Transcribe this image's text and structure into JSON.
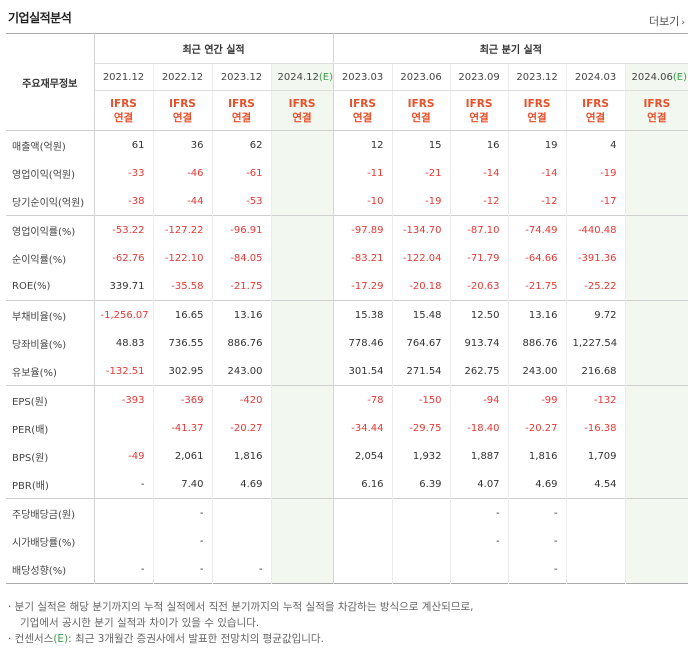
{
  "title": "기업실적분석",
  "more_label": "더보기",
  "header": {
    "corner": "주요재무정보",
    "annual_group": "최근 연간 실적",
    "quarter_group": "최근 분기 실적",
    "annual_periods": [
      "2021.12",
      "2022.12",
      "2023.12",
      "2024.12"
    ],
    "quarter_periods": [
      "2023.03",
      "2023.06",
      "2023.09",
      "2023.12",
      "2024.03",
      "2024.06"
    ],
    "est_mark": "(E)",
    "ifrs_line1": "IFRS",
    "ifrs_line2": "연결"
  },
  "rows": [
    {
      "label": "매출액(억원)",
      "values": [
        "61",
        "36",
        "62",
        "",
        "12",
        "15",
        "16",
        "19",
        "4",
        ""
      ],
      "neg": [
        0,
        0,
        0,
        0,
        0,
        0,
        0,
        0,
        0,
        0
      ]
    },
    {
      "label": "영업이익(억원)",
      "values": [
        "-33",
        "-46",
        "-61",
        "",
        "-11",
        "-21",
        "-14",
        "-14",
        "-19",
        ""
      ],
      "neg": [
        1,
        1,
        1,
        0,
        1,
        1,
        1,
        1,
        1,
        0
      ]
    },
    {
      "label": "당기순이익(억원)",
      "values": [
        "-38",
        "-44",
        "-53",
        "",
        "-10",
        "-19",
        "-12",
        "-12",
        "-17",
        ""
      ],
      "neg": [
        1,
        1,
        1,
        0,
        1,
        1,
        1,
        1,
        1,
        0
      ]
    },
    {
      "label": "영업이익률(%)",
      "values": [
        "-53.22",
        "-127.22",
        "-96.91",
        "",
        "-97.89",
        "-134.70",
        "-87.10",
        "-74.49",
        "-440.48",
        ""
      ],
      "neg": [
        1,
        1,
        1,
        0,
        1,
        1,
        1,
        1,
        1,
        0
      ]
    },
    {
      "label": "순이익률(%)",
      "values": [
        "-62.76",
        "-122.10",
        "-84.05",
        "",
        "-83.21",
        "-122.04",
        "-71.79",
        "-64.66",
        "-391.36",
        ""
      ],
      "neg": [
        1,
        1,
        1,
        0,
        1,
        1,
        1,
        1,
        1,
        0
      ]
    },
    {
      "label": "ROE(%)",
      "values": [
        "339.71",
        "-35.58",
        "-21.75",
        "",
        "-17.29",
        "-20.18",
        "-20.63",
        "-21.75",
        "-25.22",
        ""
      ],
      "neg": [
        0,
        1,
        1,
        0,
        1,
        1,
        1,
        1,
        1,
        0
      ]
    },
    {
      "label": "부채비율(%)",
      "values": [
        "-1,256.07",
        "16.65",
        "13.16",
        "",
        "15.38",
        "15.48",
        "12.50",
        "13.16",
        "9.72",
        ""
      ],
      "neg": [
        1,
        0,
        0,
        0,
        0,
        0,
        0,
        0,
        0,
        0
      ]
    },
    {
      "label": "당좌비율(%)",
      "values": [
        "48.83",
        "736.55",
        "886.76",
        "",
        "778.46",
        "764.67",
        "913.74",
        "886.76",
        "1,227.54",
        ""
      ],
      "neg": [
        0,
        0,
        0,
        0,
        0,
        0,
        0,
        0,
        0,
        0
      ]
    },
    {
      "label": "유보율(%)",
      "values": [
        "-132.51",
        "302.95",
        "243.00",
        "",
        "301.54",
        "271.54",
        "262.75",
        "243.00",
        "216.68",
        ""
      ],
      "neg": [
        1,
        0,
        0,
        0,
        0,
        0,
        0,
        0,
        0,
        0
      ]
    },
    {
      "label": "EPS(원)",
      "values": [
        "-393",
        "-369",
        "-420",
        "",
        "-78",
        "-150",
        "-94",
        "-99",
        "-132",
        ""
      ],
      "neg": [
        1,
        1,
        1,
        0,
        1,
        1,
        1,
        1,
        1,
        0
      ]
    },
    {
      "label": "PER(배)",
      "values": [
        "",
        "-41.37",
        "-20.27",
        "",
        "-34.44",
        "-29.75",
        "-18.40",
        "-20.27",
        "-16.38",
        ""
      ],
      "neg": [
        0,
        1,
        1,
        0,
        1,
        1,
        1,
        1,
        1,
        0
      ]
    },
    {
      "label": "BPS(원)",
      "values": [
        "-49",
        "2,061",
        "1,816",
        "",
        "2,054",
        "1,932",
        "1,887",
        "1,816",
        "1,709",
        ""
      ],
      "neg": [
        1,
        0,
        0,
        0,
        0,
        0,
        0,
        0,
        0,
        0
      ]
    },
    {
      "label": "PBR(배)",
      "values": [
        "-",
        "7.40",
        "4.69",
        "",
        "6.16",
        "6.39",
        "4.07",
        "4.69",
        "4.54",
        ""
      ],
      "neg": [
        0,
        0,
        0,
        0,
        0,
        0,
        0,
        0,
        0,
        0
      ]
    },
    {
      "label": "주당배당금(원)",
      "values": [
        "",
        "-",
        "",
        "",
        "",
        "",
        "-",
        "-",
        "",
        ""
      ],
      "neg": [
        0,
        0,
        0,
        0,
        0,
        0,
        0,
        0,
        0,
        0
      ]
    },
    {
      "label": "시가배당률(%)",
      "values": [
        "",
        "-",
        "",
        "",
        "",
        "",
        "-",
        "-",
        "",
        ""
      ],
      "neg": [
        0,
        0,
        0,
        0,
        0,
        0,
        0,
        0,
        0,
        0
      ]
    },
    {
      "label": "배당성향(%)",
      "values": [
        "-",
        "-",
        "-",
        "",
        "",
        "",
        "",
        "-",
        "",
        ""
      ],
      "neg": [
        0,
        0,
        0,
        0,
        0,
        0,
        0,
        0,
        0,
        0
      ]
    }
  ],
  "notes": {
    "line1": "· 분기 실적은 해당 분기까지의 누적 실적에서 직전 분기까지의 누적 실적을 차감하는 방식으로 계산되므로,",
    "line2": "기업에서 공시한 분기 실적과 차이가 있을 수 있습니다.",
    "line3_prefix": "· 컨센서스",
    "line3_est": "(E)",
    "line3_suffix": ": 최근 3개월간 증권사에서 발표한 전망치의 평균값입니다."
  },
  "colors": {
    "negative": "#e53935",
    "ifrs": "#e8502a",
    "estimate_bg": "#f2f8ef",
    "estimate_mark": "#3aa04a"
  }
}
